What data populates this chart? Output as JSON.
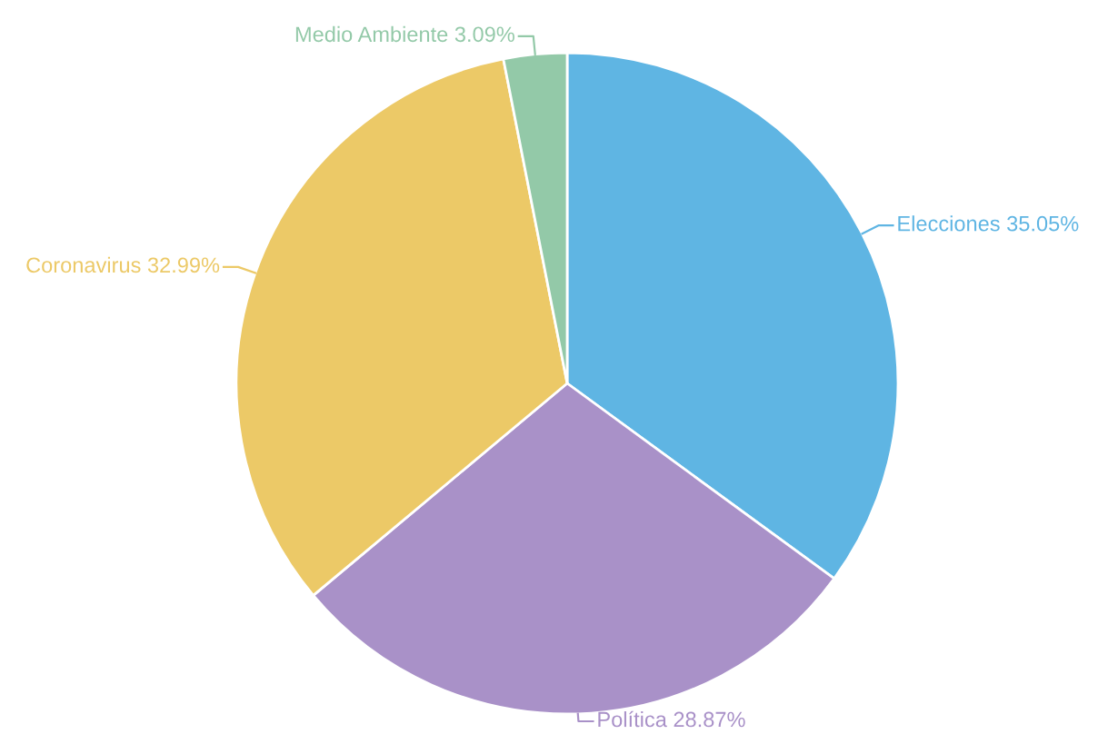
{
  "chart_data": {
    "type": "pie",
    "categories": [
      "Elecciones",
      "Política",
      "Coronavirus",
      "Medio Ambiente"
    ],
    "values": [
      35.05,
      28.87,
      32.99,
      3.09
    ],
    "value_labels": [
      "35.05%",
      "28.87%",
      "32.99%",
      "3.09%"
    ],
    "colors": [
      "#5fb5e3",
      "#a991c8",
      "#ecc967",
      "#93c9a8"
    ],
    "legend": false
  }
}
